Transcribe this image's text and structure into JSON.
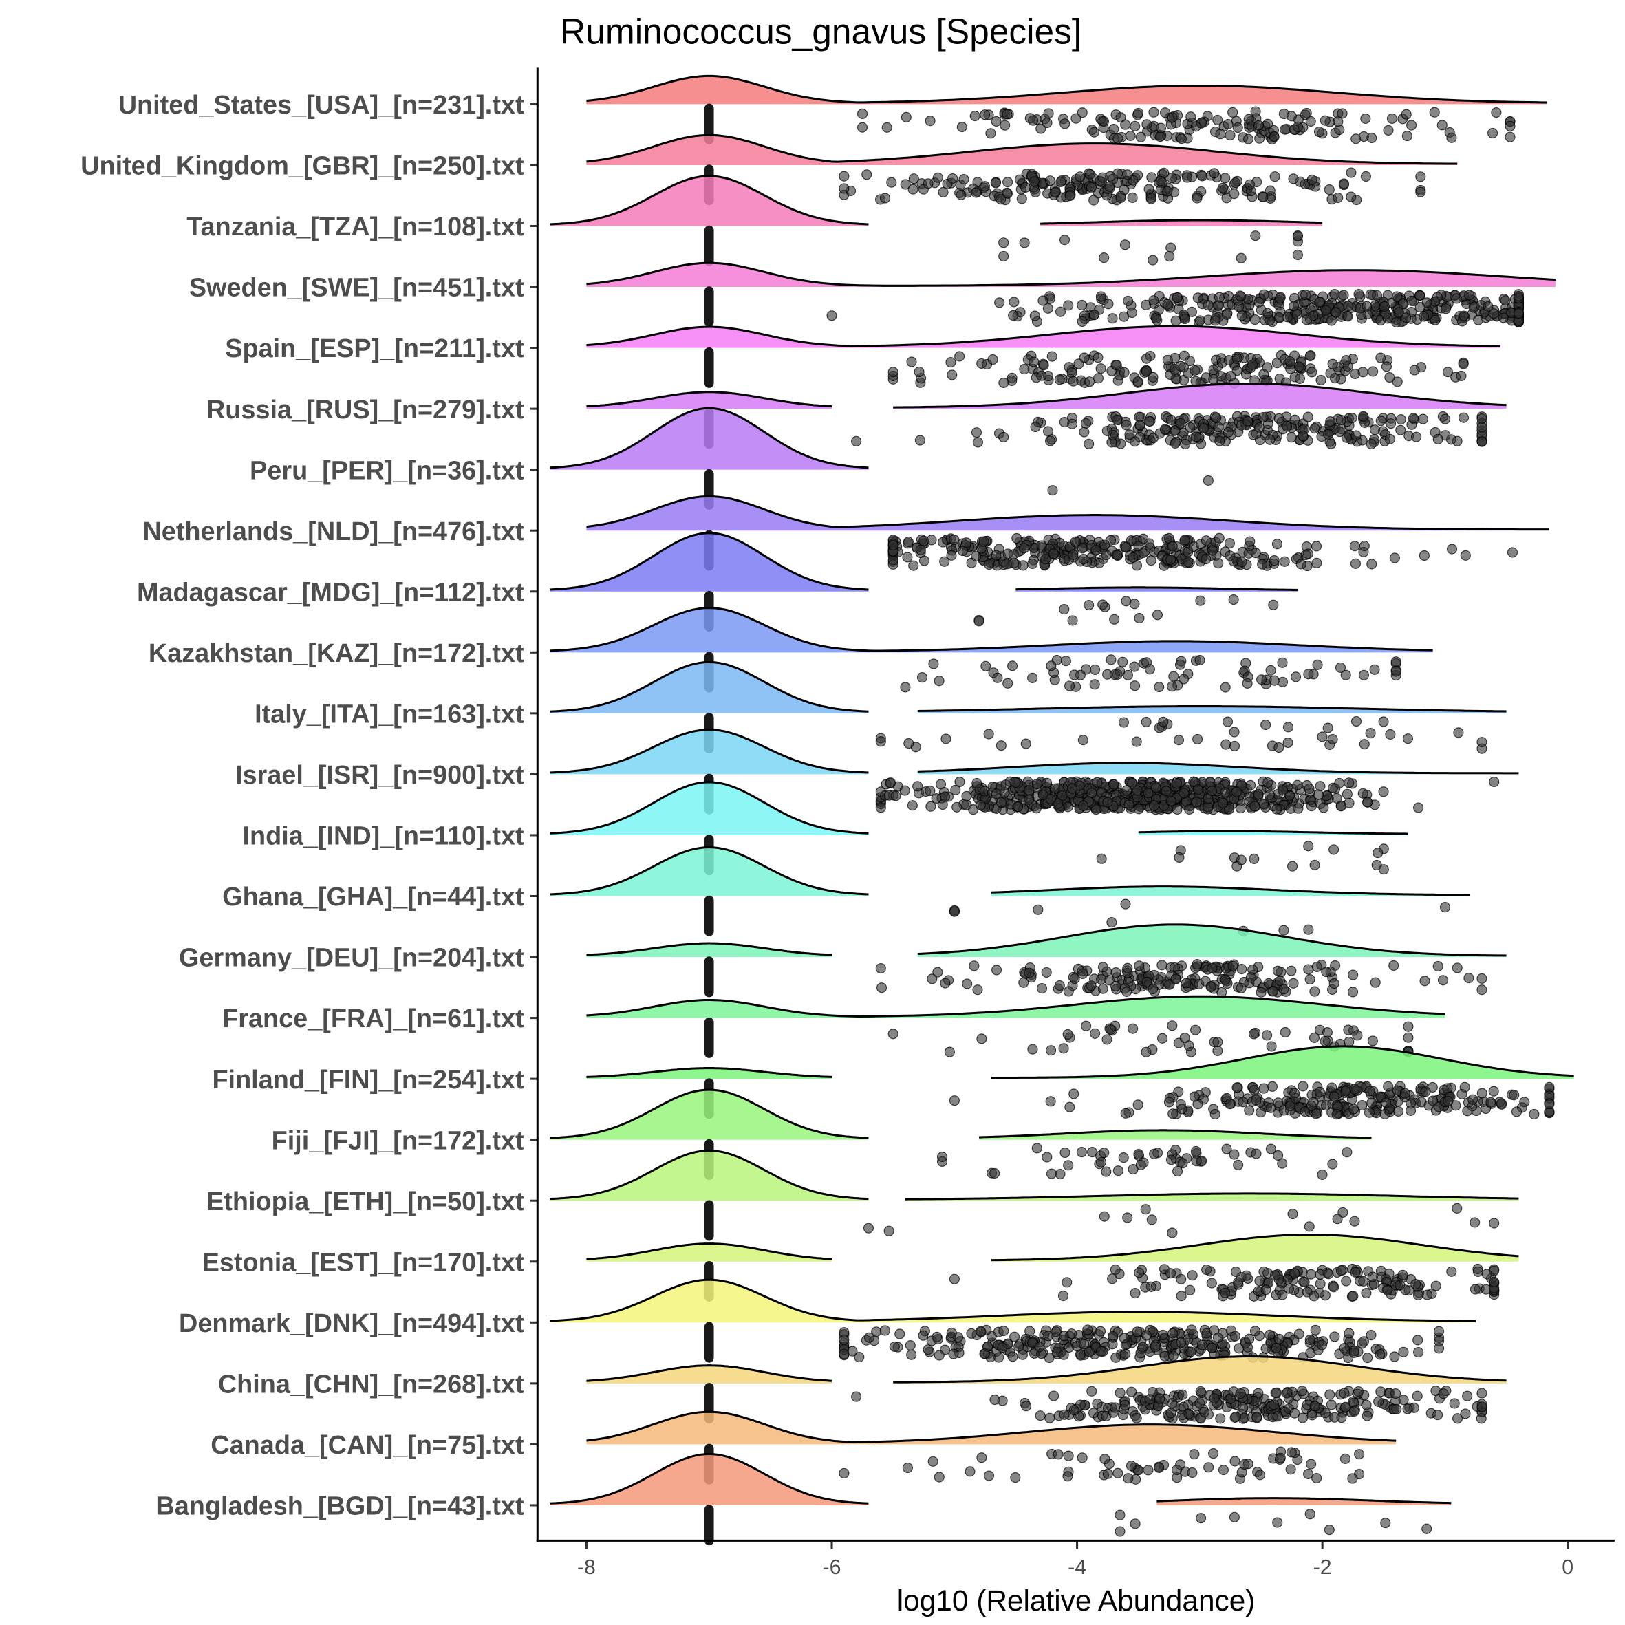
{
  "chart_data": {
    "type": "ridgeline-raincloud",
    "title": "Ruminococcus_gnavus [Species]",
    "xlabel": "log10 (Relative Abundance)",
    "ylabel": "",
    "xlim": [
      -8.4,
      0.4
    ],
    "x_ticks": [
      -8,
      -6,
      -4,
      -2,
      0
    ],
    "x_tick_labels": [
      "-8",
      "-6",
      "-4",
      "-2",
      "0"
    ],
    "grid": false,
    "legend": "none",
    "zero_value": -7,
    "note": "density heights relative (1 = tallest zero-abundance peak); nonzero values summarized by mode/sd/range; point counts approximate",
    "groups": [
      {
        "label": "United_States_[USA]_[n=231].txt",
        "zero_peak": 0.45,
        "nz_peak": 0.29,
        "nz_mode": -3.0,
        "nz_sd": 1.1,
        "nz_range": [
          -5.75,
          -0.47
        ],
        "n_points": 150,
        "joined": true
      },
      {
        "label": "United_Kingdom_[GBR]_[n=250].txt",
        "zero_peak": 0.48,
        "nz_peak": 0.34,
        "nz_mode": -3.86,
        "nz_sd": 1.0,
        "nz_range": [
          -5.9,
          -1.2
        ],
        "n_points": 200,
        "joined": true
      },
      {
        "label": "Tanzania_[TZA]_[n=108].txt",
        "zero_peak": 0.81,
        "nz_peak": 0.08,
        "nz_mode": -3.0,
        "nz_sd": 0.8,
        "nz_range": [
          -4.6,
          -2.2
        ],
        "n_points": 15,
        "joined": false
      },
      {
        "label": "Sweden_[SWE]_[n=451].txt",
        "zero_peak": 0.38,
        "nz_peak": 0.26,
        "nz_mode": -1.74,
        "nz_sd": 1.2,
        "nz_range": [
          -6.0,
          -0.4
        ],
        "n_points": 370,
        "joined": true
      },
      {
        "label": "Spain_[ESP]_[n=211].txt",
        "zero_peak": 0.33,
        "nz_peak": 0.34,
        "nz_mode": -3.2,
        "nz_sd": 1.0,
        "nz_range": [
          -5.5,
          -0.85
        ],
        "n_points": 170,
        "joined": true
      },
      {
        "label": "Russia_[RUS]_[n=279].txt",
        "zero_peak": 0.26,
        "nz_peak": 0.4,
        "nz_mode": -2.6,
        "nz_sd": 1.0,
        "nz_range": [
          -5.8,
          -0.7
        ],
        "n_points": 230,
        "joined": false
      },
      {
        "label": "Peru_[PER]_[n=36].txt",
        "zero_peak": 1.0,
        "nz_peak": 0,
        "nz_mode": -3.5,
        "nz_sd": 0.6,
        "nz_range": [
          -4.2,
          -2.93
        ],
        "n_points": 2,
        "joined": false
      },
      {
        "label": "Netherlands_[NLD]_[n=476].txt",
        "zero_peak": 0.55,
        "nz_peak": 0.24,
        "nz_mode": -3.86,
        "nz_sd": 1.1,
        "nz_range": [
          -5.5,
          -0.45
        ],
        "n_points": 300,
        "joined": true
      },
      {
        "label": "Madagascar_[MDG]_[n=112].txt",
        "zero_peak": 0.95,
        "nz_peak": 0.05,
        "nz_mode": -3.5,
        "nz_sd": 0.7,
        "nz_range": [
          -4.8,
          -2.4
        ],
        "n_points": 15,
        "joined": false
      },
      {
        "label": "Kazakhstan_[KAZ]_[n=172].txt",
        "zero_peak": 0.72,
        "nz_peak": 0.17,
        "nz_mode": -3.2,
        "nz_sd": 1.0,
        "nz_range": [
          -5.4,
          -1.4
        ],
        "n_points": 70,
        "joined": true
      },
      {
        "label": "Italy_[ITA]_[n=163].txt",
        "zero_peak": 0.83,
        "nz_peak": 0.1,
        "nz_mode": -3.0,
        "nz_sd": 1.3,
        "nz_range": [
          -5.6,
          -0.7
        ],
        "n_points": 40,
        "joined": false
      },
      {
        "label": "Israel_[ISR]_[n=900].txt",
        "zero_peak": 0.72,
        "nz_peak": 0.17,
        "nz_mode": -3.6,
        "nz_sd": 0.9,
        "nz_range": [
          -5.6,
          -0.6
        ],
        "n_points": 600,
        "joined": false
      },
      {
        "label": "India_[IND]_[n=110].txt",
        "zero_peak": 0.86,
        "nz_peak": 0.05,
        "nz_mode": -2.8,
        "nz_sd": 0.7,
        "nz_range": [
          -3.8,
          -1.5
        ],
        "n_points": 15,
        "joined": false
      },
      {
        "label": "Ghana_[GHA]_[n=44].txt",
        "zero_peak": 0.79,
        "nz_peak": 0.14,
        "nz_mode": -3.3,
        "nz_sd": 0.9,
        "nz_range": [
          -5.0,
          -1.0
        ],
        "n_points": 10,
        "joined": false
      },
      {
        "label": "Germany_[DEU]_[n=204].txt",
        "zero_peak": 0.21,
        "nz_peak": 0.52,
        "nz_mode": -3.2,
        "nz_sd": 0.9,
        "nz_range": [
          -5.6,
          -0.7
        ],
        "n_points": 180,
        "joined": false
      },
      {
        "label": "France_[FRA]_[n=61].txt",
        "zero_peak": 0.28,
        "nz_peak": 0.34,
        "nz_mode": -3.0,
        "nz_sd": 1.0,
        "nz_range": [
          -5.5,
          -1.3
        ],
        "n_points": 50,
        "joined": true
      },
      {
        "label": "Finland_[FIN]_[n=254].txt",
        "zero_peak": 0.16,
        "nz_peak": 0.52,
        "nz_mode": -1.83,
        "nz_sd": 0.8,
        "nz_range": [
          -5.0,
          -0.15
        ],
        "n_points": 240,
        "joined": false
      },
      {
        "label": "Fiji_[FJI]_[n=172].txt",
        "zero_peak": 0.81,
        "nz_peak": 0.14,
        "nz_mode": -3.3,
        "nz_sd": 0.8,
        "nz_range": [
          -5.1,
          -1.8
        ],
        "n_points": 50,
        "joined": false
      },
      {
        "label": "Ethiopia_[ETH]_[n=50].txt",
        "zero_peak": 0.81,
        "nz_peak": 0.1,
        "nz_mode": -2.6,
        "nz_sd": 1.2,
        "nz_range": [
          -5.7,
          -0.6
        ],
        "n_points": 15,
        "joined": false
      },
      {
        "label": "Estonia_[EST]_[n=170].txt",
        "zero_peak": 0.28,
        "nz_peak": 0.43,
        "nz_mode": -2.1,
        "nz_sd": 0.9,
        "nz_range": [
          -5.0,
          -0.6
        ],
        "n_points": 150,
        "joined": false
      },
      {
        "label": "Denmark_[DNK]_[n=494].txt",
        "zero_peak": 0.69,
        "nz_peak": 0.16,
        "nz_mode": -3.5,
        "nz_sd": 1.1,
        "nz_range": [
          -5.9,
          -1.05
        ],
        "n_points": 300,
        "joined": true
      },
      {
        "label": "China_[CHN]_[n=268].txt",
        "zero_peak": 0.28,
        "nz_peak": 0.43,
        "nz_mode": -2.6,
        "nz_sd": 0.9,
        "nz_range": [
          -5.8,
          -0.7
        ],
        "n_points": 240,
        "joined": false
      },
      {
        "label": "Canada_[CAN]_[n=75].txt",
        "zero_peak": 0.52,
        "nz_peak": 0.31,
        "nz_mode": -3.4,
        "nz_sd": 1.0,
        "nz_range": [
          -5.9,
          -1.7
        ],
        "n_points": 60,
        "joined": true
      },
      {
        "label": "Bangladesh_[BGD]_[n=43].txt",
        "zero_peak": 0.83,
        "nz_peak": 0.1,
        "nz_mode": -2.4,
        "nz_sd": 0.8,
        "nz_range": [
          -3.65,
          -1.15
        ],
        "n_points": 10,
        "joined": false
      }
    ]
  }
}
